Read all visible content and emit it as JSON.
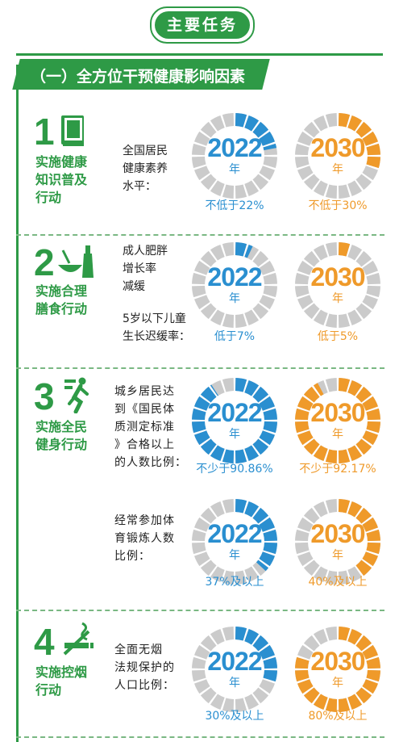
{
  "header": {
    "title": "主要任务",
    "subtitle": "（一）全方位干预健康影响因素"
  },
  "years": {
    "y2022": "2022",
    "y2030": "2030",
    "unit": "年"
  },
  "colors": {
    "green": "#2e9a46",
    "blue": "#2a8fd0",
    "orange": "#ef9a2a",
    "gray": "#cbcbcb"
  },
  "actions": [
    {
      "number": "1",
      "name": [
        "实施健康",
        "知识普及",
        "行动"
      ],
      "icon": "book-icon"
    },
    {
      "number": "2",
      "name": [
        "实施合理",
        "膳食行动"
      ],
      "icon": "food-bottle-icon"
    },
    {
      "number": "3",
      "name": [
        "实施全民",
        "健身行动"
      ],
      "icon": "running-person-icon"
    },
    {
      "number": "4",
      "name": [
        "实施控烟",
        "行动"
      ],
      "icon": "no-smoking-icon"
    }
  ],
  "indicators": [
    {
      "label": [
        "全国居民",
        "健康素养",
        "水平："
      ],
      "target_2022": "不低于22%",
      "target_2030": "不低于30%",
      "fill_2022": 0.22,
      "fill_2030": 0.3
    },
    {
      "label": [
        "成人肥胖",
        "增长率",
        "减缓"
      ],
      "target_2022": "",
      "target_2030": ""
    },
    {
      "label": [
        "5岁以下儿童",
        "生长迟缓率："
      ],
      "target_2022": "低于7%",
      "target_2030": "低于5%",
      "fill_2022": 0.07,
      "fill_2030": 0.05
    },
    {
      "label": [
        "城乡居民达",
        "到《国民体",
        "质测定标准",
        "》合格以上",
        "的人数比例："
      ],
      "target_2022": "不少于90.86%",
      "target_2030": "不少于92.17%",
      "fill_2022": 0.9086,
      "fill_2030": 0.9217
    },
    {
      "label": [
        "经常参加体",
        "育锻炼人数",
        "比例："
      ],
      "target_2022": "37%及以上",
      "target_2030": "40%及以上",
      "fill_2022": 0.37,
      "fill_2030": 0.4
    },
    {
      "label": [
        "全面无烟",
        "法规保护的",
        "人口比例："
      ],
      "target_2022": "30%及以上",
      "target_2030": "80%及以上",
      "fill_2022": 0.3,
      "fill_2030": 0.8
    }
  ]
}
